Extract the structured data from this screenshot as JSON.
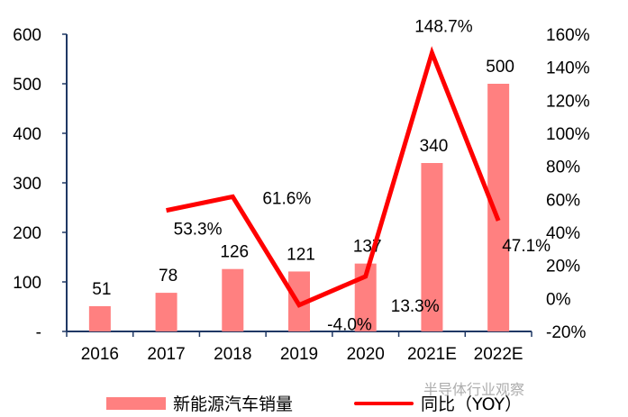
{
  "chart_data": {
    "type": "bar+line",
    "categories": [
      "2016",
      "2017",
      "2018",
      "2019",
      "2020",
      "2021E",
      "2022E"
    ],
    "series": [
      {
        "name": "新能源汽车销量",
        "type": "bar",
        "axis": "left",
        "color": "#FF8080",
        "values": [
          51,
          78,
          126,
          121,
          137,
          340,
          500
        ],
        "labels": [
          "51",
          "78",
          "126",
          "121",
          "137",
          "340",
          "500"
        ]
      },
      {
        "name": "同比（YOY）",
        "type": "line",
        "axis": "right",
        "color": "#FF0000",
        "values": [
          null,
          53.3,
          61.6,
          -4.0,
          13.3,
          148.7,
          47.1
        ],
        "labels": [
          "",
          "53.3%",
          "61.6%",
          "-4.0%",
          "13.3%",
          "148.7%",
          "47.1%"
        ]
      }
    ],
    "y_left": {
      "ylim": [
        0,
        600
      ],
      "ticks": [
        "-",
        "100",
        "200",
        "300",
        "400",
        "500",
        "600"
      ]
    },
    "y_right": {
      "ylim": [
        -20,
        160
      ],
      "ticks": [
        "-20%",
        "0%",
        "20%",
        "40%",
        "60%",
        "80%",
        "100%",
        "120%",
        "140%",
        "160%"
      ]
    },
    "grid": false,
    "legend": "bottom"
  },
  "watermark": "半导体行业观察"
}
